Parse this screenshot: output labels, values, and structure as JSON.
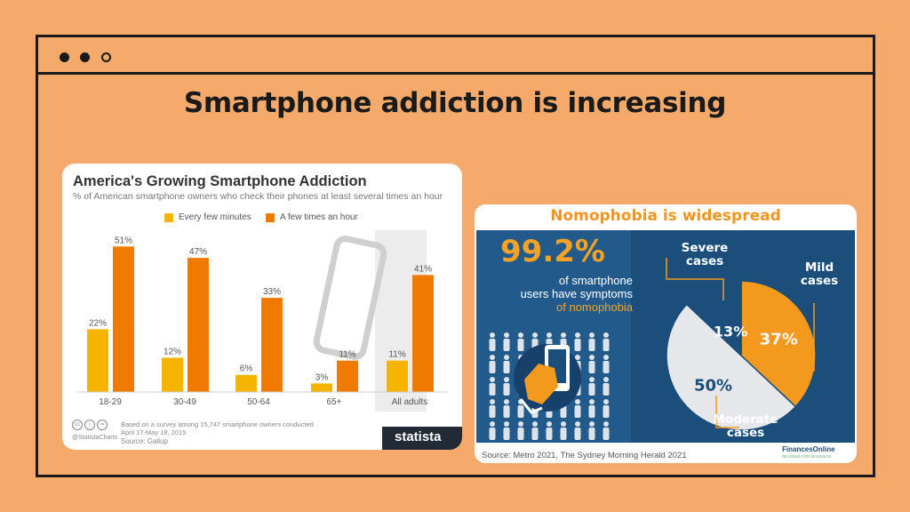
{
  "slide": {
    "title": "Smartphone addiction is increasing"
  },
  "statista": {
    "title": "America's Growing Smartphone Addiction",
    "subtitle": "% of American smartphone owners who check their phones at least several times an hour",
    "footnote": "Based on a survey among 15,747 smartphone owners conducted April 17-May 18, 2015",
    "source": "Source: Gallup",
    "charts_handle": "@StatistaCharts",
    "logo": "statista"
  },
  "nomophobia": {
    "title": "Nomophobia is widespread",
    "big_pct": "99.2%",
    "desc_1": "of smartphone",
    "desc_2": "users have symptoms",
    "desc_3": "of nomophobia",
    "label_severe": "Severe cases",
    "label_mild": "Mild cases",
    "label_moderate": "Moderate cases",
    "source": "Source: Metro 2021, The Sydney Morning Herald 2021",
    "logo": "FinancesOnline",
    "logo_sub": "REVIEWS FOR BUSINESS"
  },
  "chart_data": [
    {
      "type": "bar",
      "title": "America's Growing Smartphone Addiction",
      "categories": [
        "18-29",
        "30-49",
        "50-64",
        "65+",
        "All adults"
      ],
      "series": [
        {
          "name": "Every few minutes",
          "values": [
            22,
            12,
            6,
            3,
            11
          ],
          "color": "#F5B400"
        },
        {
          "name": "A few times an hour",
          "values": [
            51,
            47,
            33,
            11,
            41
          ],
          "color": "#F07A00"
        }
      ],
      "ylim": [
        0,
        60
      ],
      "legend": "top",
      "grid": false
    },
    {
      "type": "pie",
      "title": "Nomophobia is widespread",
      "categories": [
        "Mild cases",
        "Moderate cases",
        "Severe cases"
      ],
      "values": [
        37,
        50,
        13
      ],
      "colors": [
        "#F39A1E",
        "#E6E7EA",
        "#1B4E7A"
      ]
    }
  ]
}
